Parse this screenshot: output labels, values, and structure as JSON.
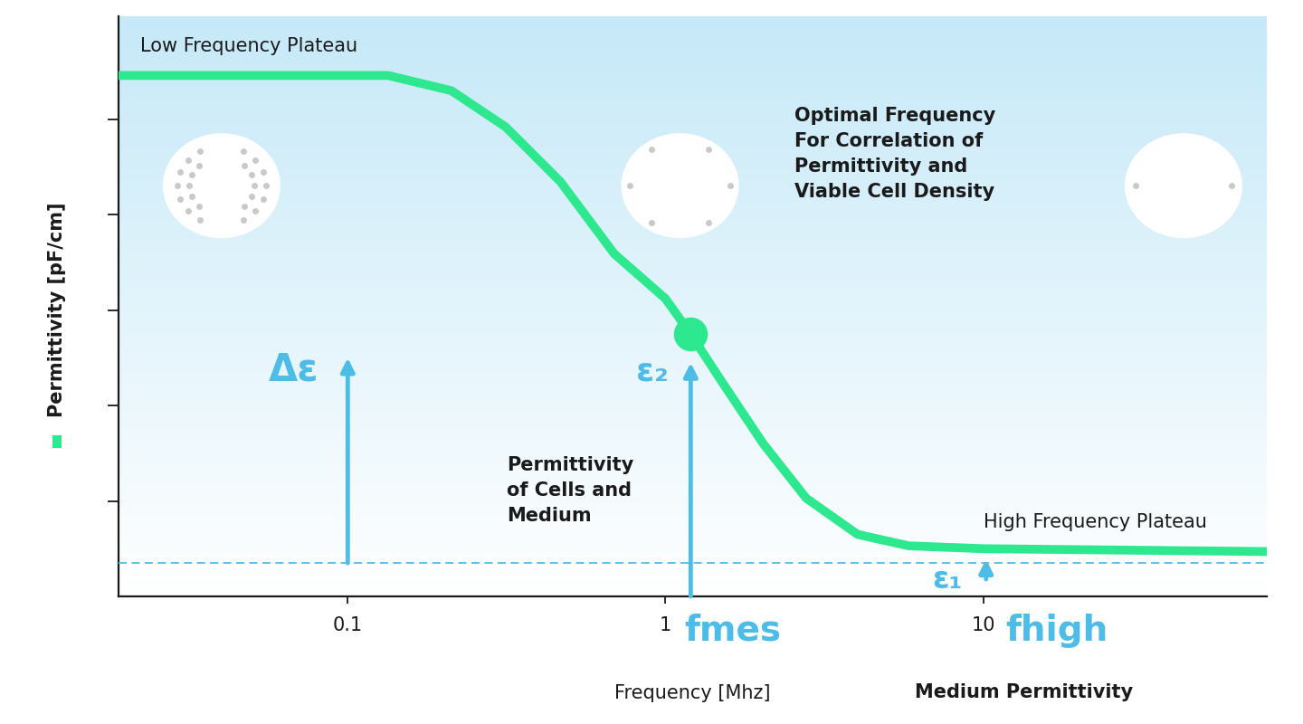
{
  "chart_data": {
    "type": "line",
    "x_label": "Frequency [Mhz]",
    "y_label": "Permittivity [pF/cm]",
    "x": [
      0.019,
      0.134,
      0.212,
      0.314,
      0.466,
      0.69,
      1,
      1.2,
      1.49,
      2.03,
      2.77,
      4.02,
      5.82,
      10,
      78
    ],
    "values": [
      5.46,
      5.46,
      5.3,
      4.92,
      4.35,
      3.59,
      3.12,
      2.75,
      2.27,
      1.6,
      1.03,
      0.65,
      0.53,
      0.5,
      0.47
    ],
    "color": "#2ee88f",
    "line_style": "solid",
    "log": "x",
    "xlim": [
      0.019,
      78
    ],
    "ylim": [
      0,
      6.08
    ],
    "xticks": [
      0.1,
      1,
      10
    ],
    "yticks": [
      1,
      2,
      3,
      4,
      5
    ],
    "tick_labels": "x",
    "grid": false,
    "baseline": 0.35,
    "measurement_point": {
      "x": 1.2,
      "y": 2.75
    },
    "arrows": [
      {
        "x": 0.1,
        "y_from": 0.35,
        "y_to": 2.5
      },
      {
        "x": 1.2,
        "y_from": 0,
        "y_to": 2.45
      },
      {
        "x": 10.2,
        "y_from": 0.18,
        "y_to": 0.39
      }
    ],
    "annotations": [
      {
        "text": "Low Frequency Plateau",
        "x": 0.0222,
        "y": 5.77
      },
      {
        "text": "Optimal Frequency\nFor Correlation of\nPermittivity and\nViable Cell Density",
        "x": 2.54,
        "y": 4.64
      },
      {
        "text": "Permittivity\nof Cells and\nMedium",
        "x": 0.316,
        "y": 1.11
      },
      {
        "text": "High Frequency Plateau",
        "x": 10.0,
        "y": 0.78
      },
      {
        "text": "Δε",
        "x": 0.0674,
        "y": 2.38
      },
      {
        "text": "ε₂",
        "x": 0.906,
        "y": 2.36
      },
      {
        "text": "ε₁",
        "x": 7.7,
        "y": 0.18
      },
      {
        "text": "fmes",
        "x": 1.146,
        "y": -0.36
      },
      {
        "text": "fhigh",
        "x": 11.75,
        "y": -0.36
      },
      {
        "text": "Medium Permittivity",
        "x": 13.4,
        "y": -1.01
      }
    ]
  }
}
